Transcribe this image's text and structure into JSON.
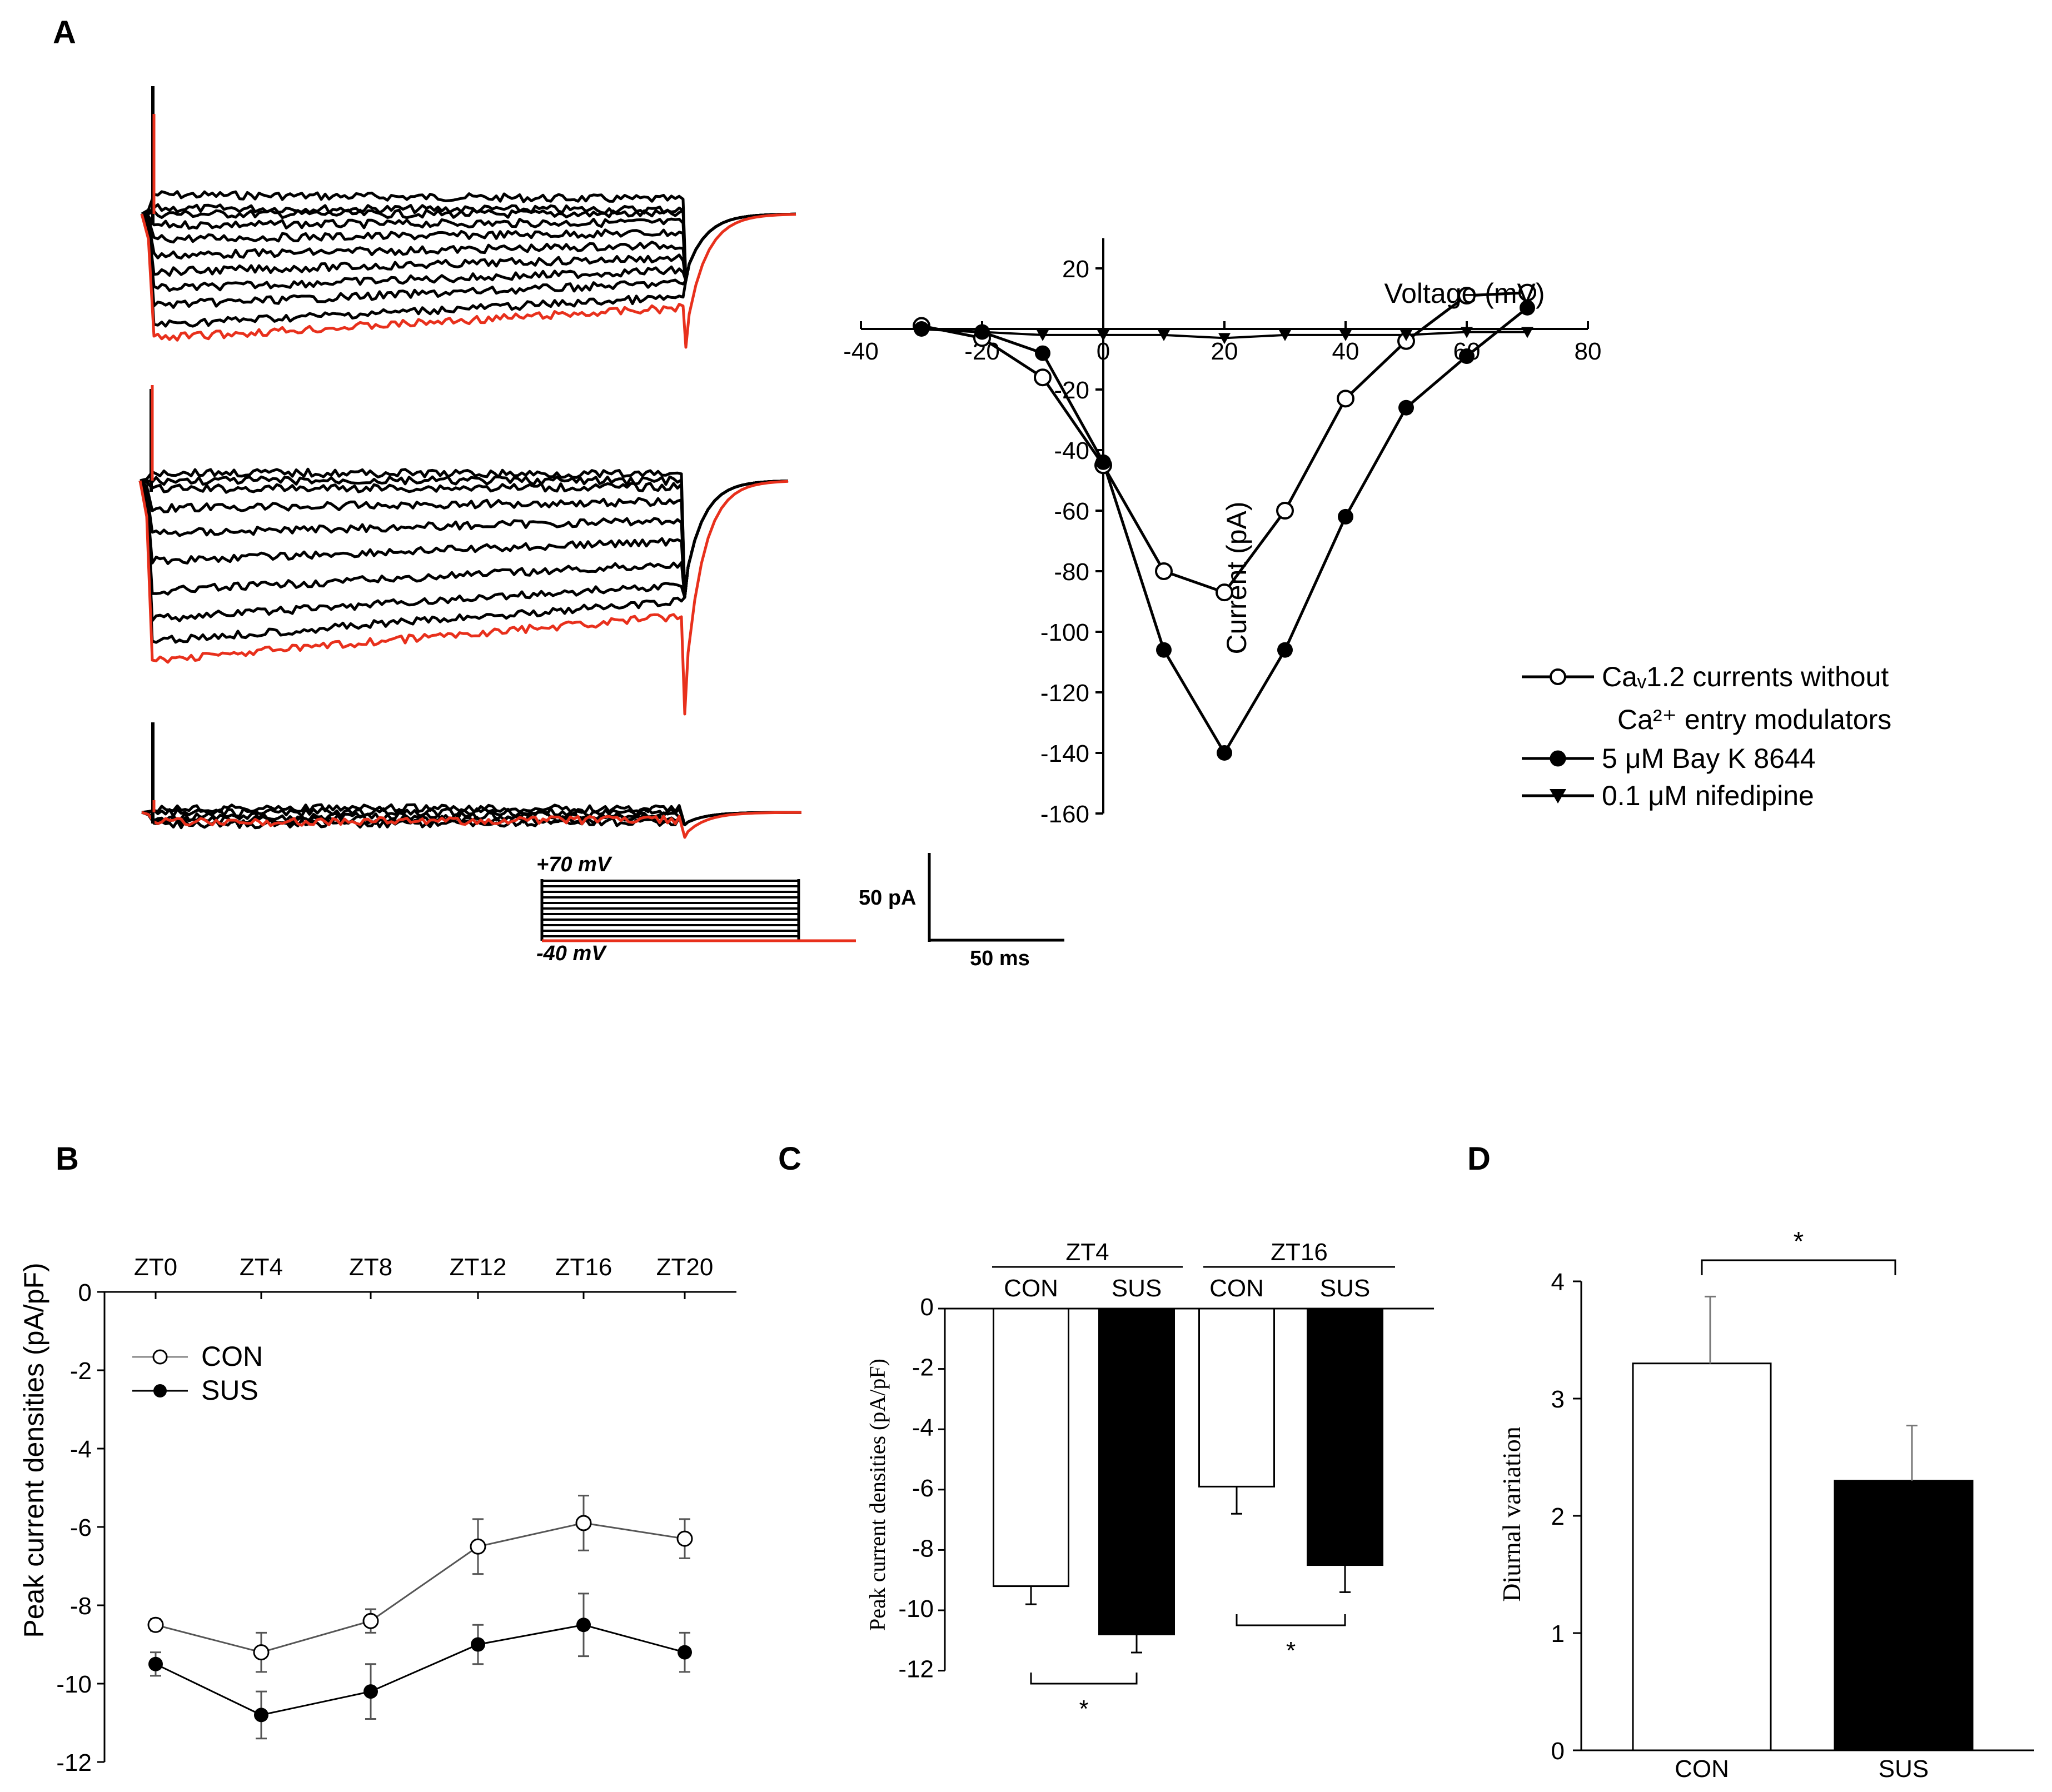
{
  "panels": {
    "a": "A",
    "b": "B",
    "c": "C",
    "d": "D"
  },
  "colors": {
    "trace": "#000000",
    "highlight": "#e8301c",
    "bar_con": "#ffffff",
    "bar_sus": "#000000"
  },
  "traces_panel": {
    "protocol_top": "+70 mV",
    "protocol_bottom": "-40 mV",
    "scale_current": "50 pA",
    "scale_time": "50 ms",
    "trace_groups": 3
  },
  "chart_data": [
    {
      "id": "A-iv",
      "type": "line",
      "xlabel": "Voltage (mV)",
      "ylabel": "Current (pA)",
      "xlim": [
        -40,
        80
      ],
      "ylim": [
        -160,
        30
      ],
      "xticks": [
        -40,
        -20,
        0,
        20,
        40,
        60,
        80
      ],
      "yticks": [
        20,
        0,
        -20,
        -40,
        -60,
        -80,
        -100,
        -120,
        -140,
        -160
      ],
      "series": [
        {
          "name": "Caᵥ1.2 currents without",
          "name_line2": "Ca²⁺ entry modulators",
          "marker": "open-circle",
          "x": [
            -30,
            -20,
            -10,
            0,
            10,
            20,
            30,
            40,
            50,
            60,
            70
          ],
          "y": [
            1,
            -3,
            -16,
            -45,
            -80,
            -87,
            -60,
            -23,
            -4,
            11,
            12
          ]
        },
        {
          "name": "5 μM Bay K 8644",
          "marker": "filled-circle",
          "x": [
            -30,
            -20,
            -10,
            0,
            10,
            20,
            30,
            40,
            50,
            60,
            70
          ],
          "y": [
            0,
            -1,
            -8,
            -44,
            -106,
            -140,
            -106,
            -62,
            -26,
            -9,
            7
          ]
        },
        {
          "name": "0.1 μM nifedipine",
          "marker": "filled-triangle",
          "x": [
            -30,
            -20,
            -10,
            0,
            10,
            20,
            30,
            40,
            50,
            60,
            70
          ],
          "y": [
            0,
            -1,
            -2,
            -2,
            -2,
            -3,
            -2,
            -2,
            -2,
            -1,
            -1
          ]
        }
      ]
    },
    {
      "id": "B",
      "type": "line",
      "ylabel": "Peak current densities (pA/pF)",
      "categories": [
        "ZT0",
        "ZT4",
        "ZT8",
        "ZT12",
        "ZT16",
        "ZT20"
      ],
      "ylim": [
        -12,
        0
      ],
      "yticks": [
        0,
        -2,
        -4,
        -6,
        -8,
        -10,
        -12
      ],
      "series": [
        {
          "name": "CON",
          "marker": "open-circle",
          "values": [
            -8.5,
            -9.2,
            -8.4,
            -6.5,
            -5.9,
            -6.3
          ],
          "errors": [
            0.15,
            0.5,
            0.3,
            0.7,
            0.7,
            0.5
          ]
        },
        {
          "name": "SUS",
          "marker": "filled-circle",
          "values": [
            -9.5,
            -10.8,
            -10.2,
            -9.0,
            -8.5,
            -9.2
          ],
          "errors": [
            0.3,
            0.6,
            0.7,
            0.5,
            0.8,
            0.5
          ]
        }
      ]
    },
    {
      "id": "C",
      "type": "bar",
      "ylabel": "Peak current densities (pA/pF)",
      "groups": [
        "ZT4",
        "ZT16"
      ],
      "categories": [
        "CON",
        "SUS",
        "CON",
        "SUS"
      ],
      "values": [
        -9.2,
        -10.8,
        -5.9,
        -8.5
      ],
      "errors": [
        0.6,
        0.6,
        0.9,
        0.9
      ],
      "ylim": [
        -12,
        0
      ],
      "yticks": [
        0,
        -2,
        -4,
        -6,
        -8,
        -10,
        -12
      ],
      "significance": [
        "*",
        "*"
      ]
    },
    {
      "id": "D",
      "type": "bar",
      "ylabel": "Diurnal variation",
      "categories": [
        "CON",
        "SUS"
      ],
      "values": [
        3.3,
        2.3
      ],
      "errors": [
        0.57,
        0.47
      ],
      "ylim": [
        0,
        4
      ],
      "yticks": [
        0,
        1,
        2,
        3,
        4
      ],
      "significance": "*"
    }
  ]
}
